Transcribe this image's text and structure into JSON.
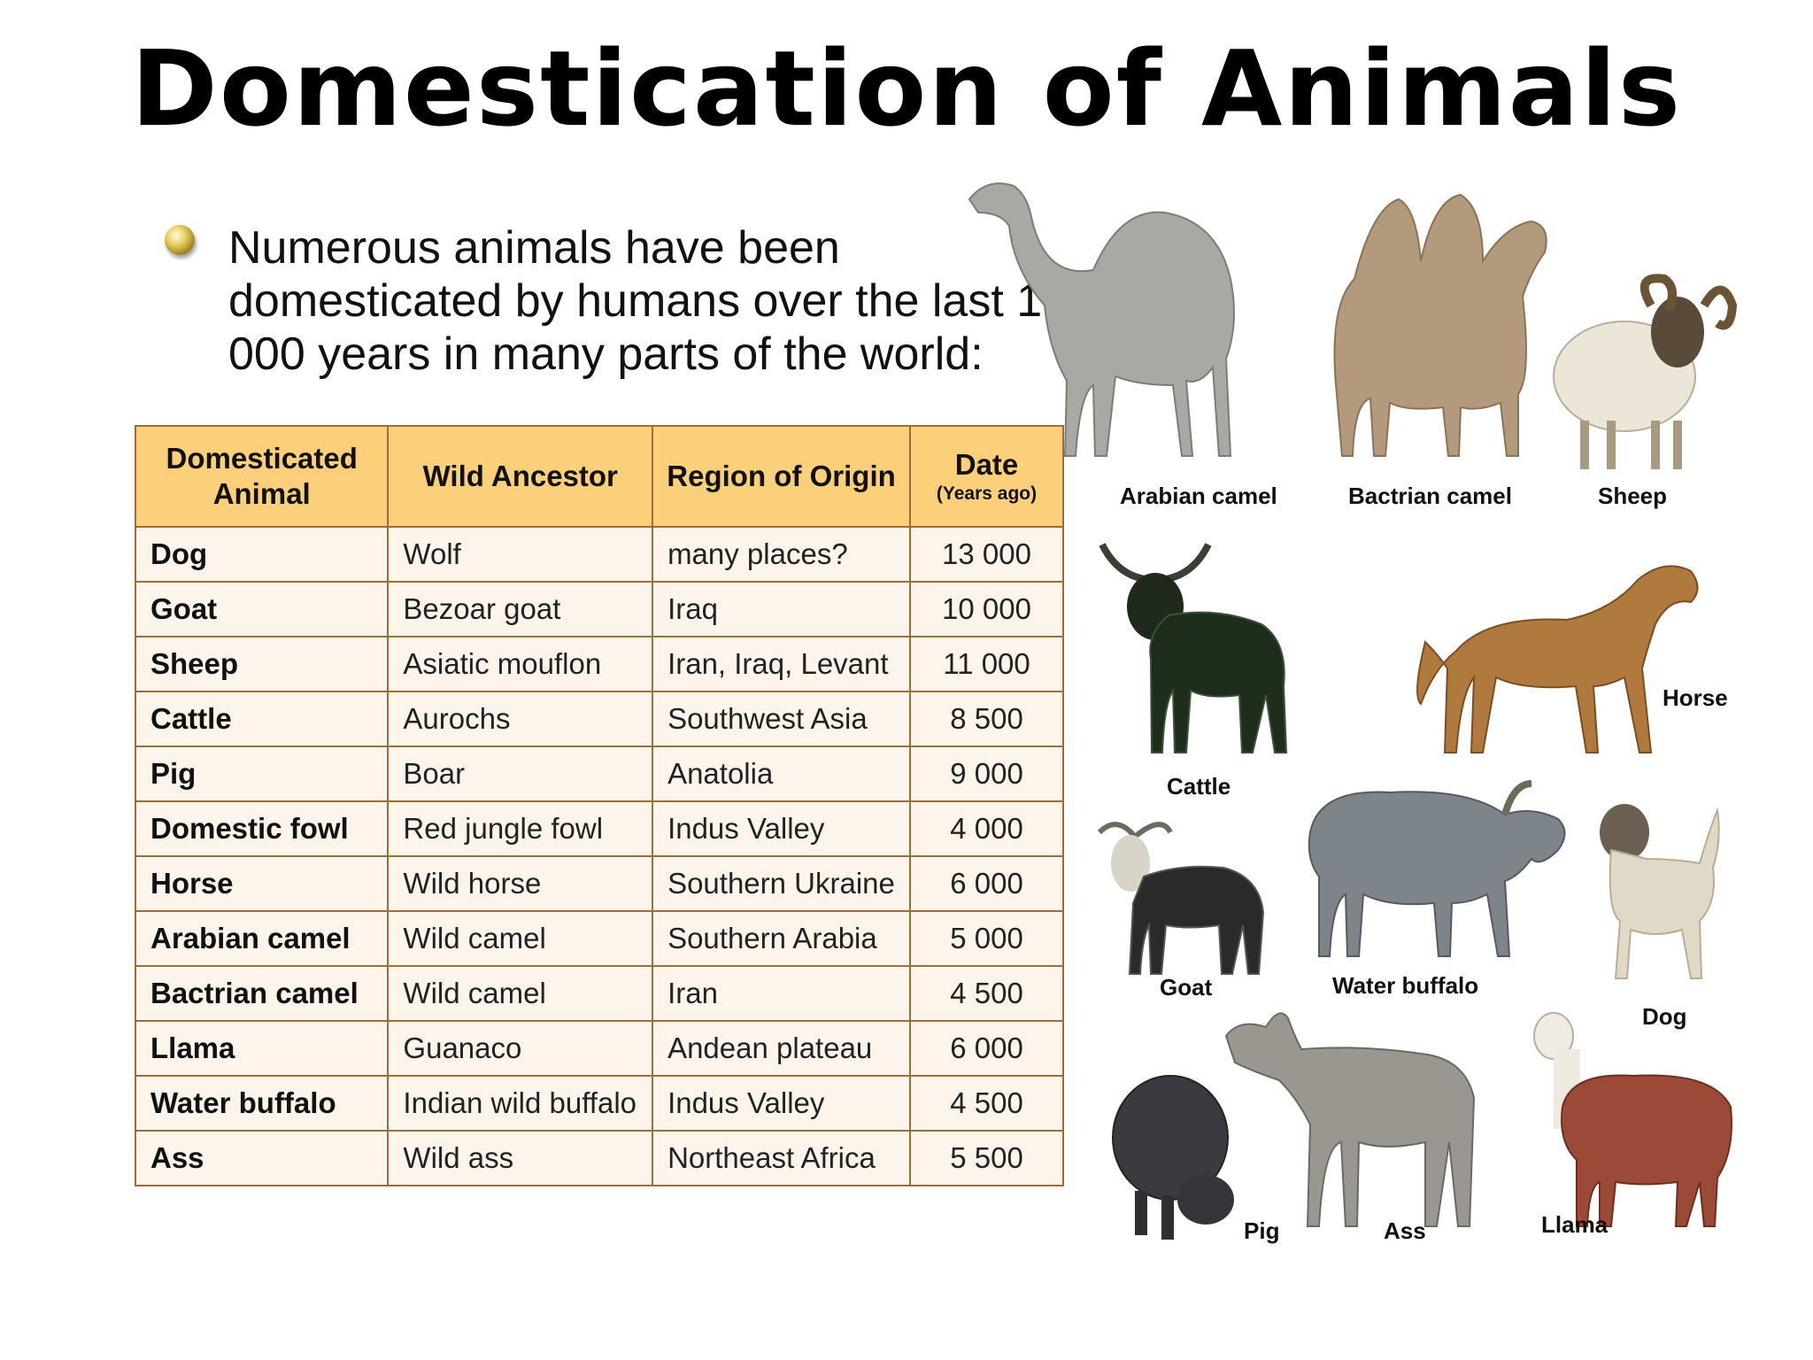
{
  "title": "Domestication of Animals",
  "intro": "Numerous animals have been domesticated by humans over the last 10 000 years in many parts of the world:",
  "table": {
    "headers": {
      "animal_line1": "Domesticated",
      "animal_line2": "Animal",
      "ancestor": "Wild Ancestor",
      "region": "Region of Origin",
      "date": "Date",
      "date_sub": "(Years ago)"
    },
    "rows": [
      {
        "animal": "Dog",
        "ancestor": "Wolf",
        "region": "many places?",
        "date": "13 000"
      },
      {
        "animal": "Goat",
        "ancestor": "Bezoar goat",
        "region": "Iraq",
        "date": "10 000"
      },
      {
        "animal": "Sheep",
        "ancestor": "Asiatic mouflon",
        "region": "Iran, Iraq, Levant",
        "date": "11 000"
      },
      {
        "animal": "Cattle",
        "ancestor": "Aurochs",
        "region": "Southwest Asia",
        "date": "8 500"
      },
      {
        "animal": "Pig",
        "ancestor": "Boar",
        "region": "Anatolia",
        "date": "9 000"
      },
      {
        "animal": "Domestic fowl",
        "ancestor": "Red jungle fowl",
        "region": "Indus Valley",
        "date": "4 000"
      },
      {
        "animal": "Horse",
        "ancestor": "Wild horse",
        "region": "Southern Ukraine",
        "date": "6 000"
      },
      {
        "animal": "Arabian camel",
        "ancestor": "Wild camel",
        "region": "Southern Arabia",
        "date": "5 000"
      },
      {
        "animal": "Bactrian camel",
        "ancestor": "Wild camel",
        "region": "Iran",
        "date": "4 500"
      },
      {
        "animal": "Llama",
        "ancestor": "Guanaco",
        "region": "Andean plateau",
        "date": "6 000"
      },
      {
        "animal": "Water buffalo",
        "ancestor": "Indian wild buffalo",
        "region": "Indus Valley",
        "date": "4 500"
      },
      {
        "animal": "Ass",
        "ancestor": "Wild ass",
        "region": "Northeast Africa",
        "date": "5 500"
      }
    ]
  },
  "captions": {
    "arabian_camel": "Arabian camel",
    "bactrian_camel": "Bactrian camel",
    "sheep": "Sheep",
    "cattle": "Cattle",
    "horse": "Horse",
    "goat": "Goat",
    "water_buffalo": "Water buffalo",
    "dog": "Dog",
    "pig": "Pig",
    "ass": "Ass",
    "llama": "Llama"
  }
}
